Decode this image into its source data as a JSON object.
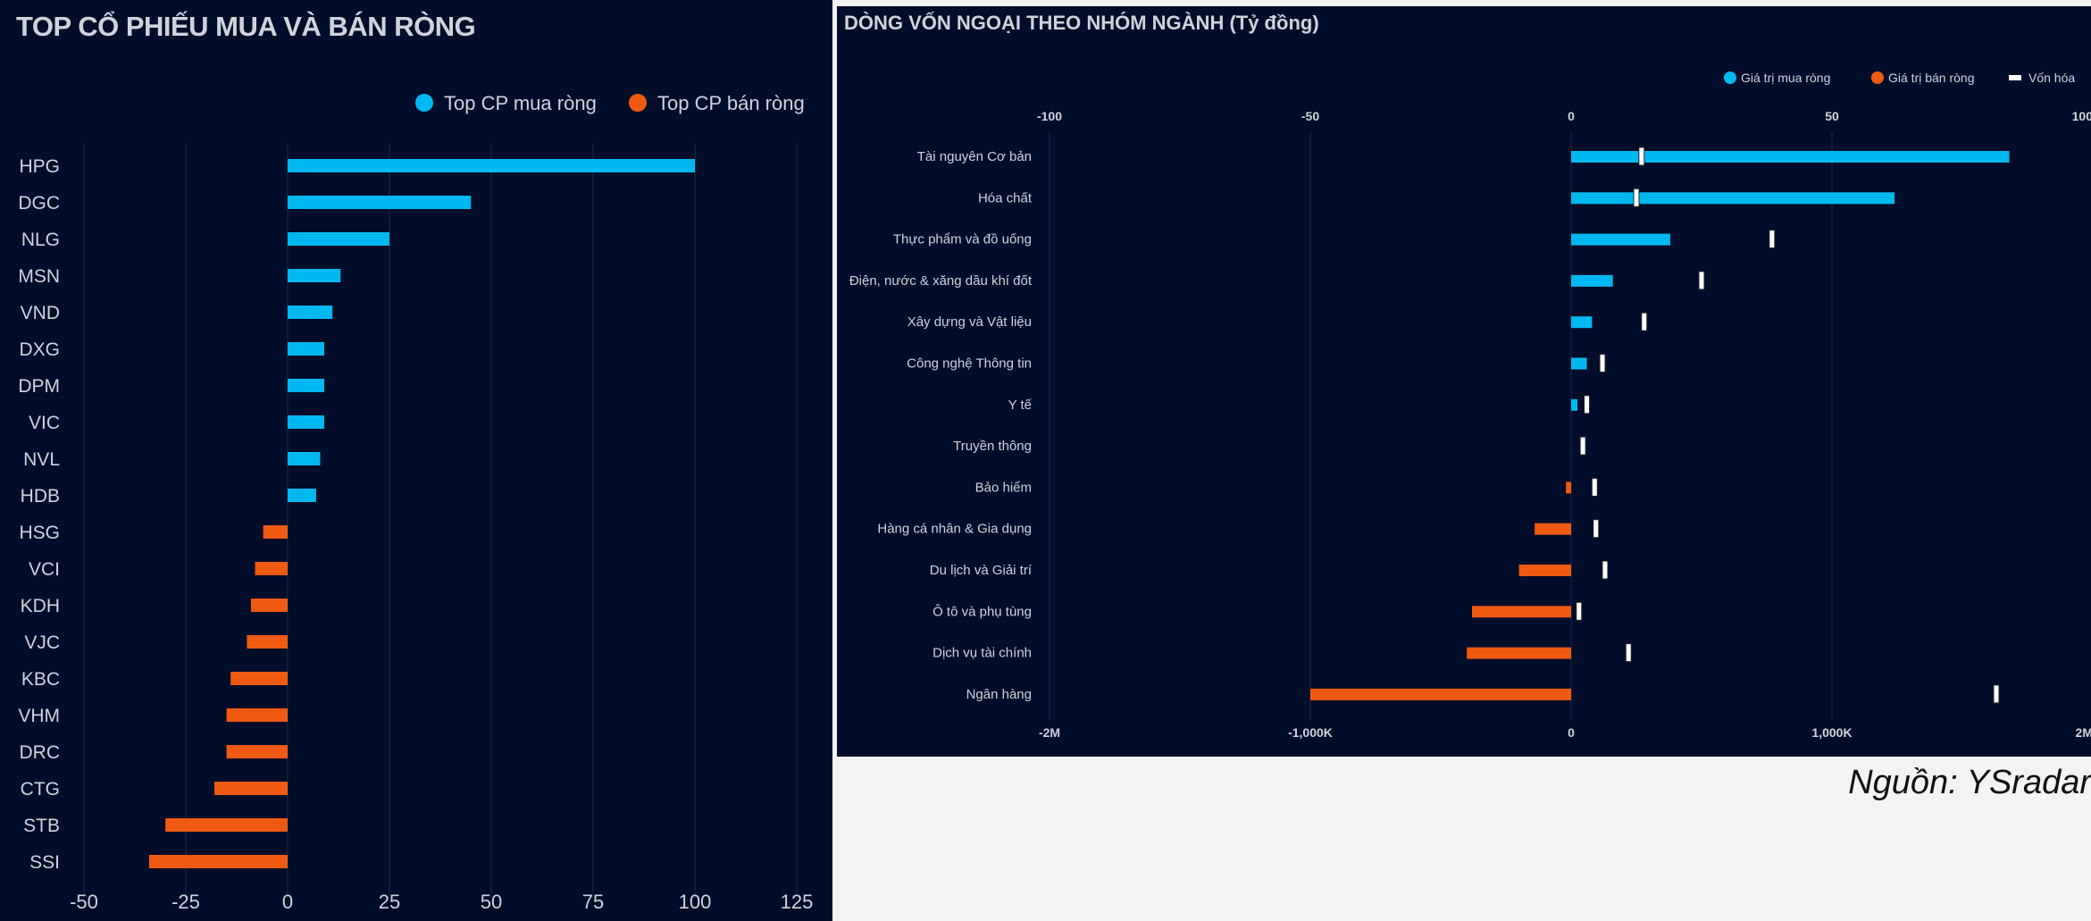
{
  "left_title": "TOP CỔ PHIẾU MUA VÀ BÁN RÒNG",
  "right_title": "DÒNG VỐN NGOẠI THEO NHÓM NGÀNH (Tỷ đồng)",
  "source": "Nguồn: YSradar",
  "colors": {
    "buy": "#00b8f0",
    "sell": "#ef5a13",
    "cap": "#ffffff",
    "grid": "#1b2a4a",
    "text": "#cfd3db",
    "bg": "#020d29"
  },
  "chart_data": [
    {
      "type": "bar",
      "orientation": "horizontal",
      "title": "TOP CỔ PHIẾU MUA VÀ BÁN RÒNG",
      "legend_position": "top-right",
      "grid": true,
      "xlim": [
        -50,
        125
      ],
      "x_ticks": [
        "-50",
        "-25",
        "0",
        "25",
        "50",
        "75",
        "100",
        "125"
      ],
      "categories": [
        "HPG",
        "DGC",
        "NLG",
        "MSN",
        "VND",
        "DXG",
        "DPM",
        "VIC",
        "NVL",
        "HDB",
        "HSG",
        "VCI",
        "KDH",
        "VJC",
        "KBC",
        "VHM",
        "DRC",
        "CTG",
        "STB",
        "SSI"
      ],
      "series": [
        {
          "name": "Top CP mua ròng",
          "color": "#00b8f0",
          "values": [
            100,
            45,
            25,
            13,
            11,
            9,
            9,
            9,
            8,
            7,
            null,
            null,
            null,
            null,
            null,
            null,
            null,
            null,
            null,
            null
          ]
        },
        {
          "name": "Top CP bán ròng",
          "color": "#ef5a13",
          "values": [
            null,
            null,
            null,
            null,
            null,
            null,
            null,
            null,
            null,
            null,
            -6,
            -8,
            -9,
            -10,
            -14,
            -15,
            -15,
            -18,
            -30,
            -34
          ]
        }
      ]
    },
    {
      "type": "bar",
      "orientation": "horizontal",
      "title": "DÒNG VỐN NGOẠI THEO NHÓM NGÀNH (Tỷ đồng)",
      "legend_position": "top-right",
      "grid": true,
      "xlim_top": [
        -100,
        100
      ],
      "x_ticks_top": [
        "-100",
        "-50",
        "0",
        "50",
        "100"
      ],
      "xlim_bottom": [
        -2000000,
        2000000
      ],
      "x_ticks_bottom": [
        "-2M",
        "-1,000K",
        "0",
        "1,000K",
        "2M"
      ],
      "categories": [
        "Tài nguyên Cơ bản",
        "Hóa chất",
        "Thực phẩm và đồ uống",
        "Điện, nước & xăng dầu khí đốt",
        "Xây dựng và Vật liệu",
        "Công nghệ Thông tin",
        "Y tế",
        "Truyền thông",
        "Bảo hiểm",
        "Hàng cá nhân & Gia dụng",
        "Du lịch và Giải trí",
        "Ô tô và phụ tùng",
        "Dịch vụ tài chính",
        "Ngân hàng"
      ],
      "series": [
        {
          "name": "Giá trị mua ròng",
          "color": "#00b8f0",
          "axis": "top",
          "values": [
            84,
            62,
            19,
            8,
            4,
            3,
            1.2,
            null,
            null,
            null,
            null,
            null,
            null,
            null
          ]
        },
        {
          "name": "Giá trị bán ròng",
          "color": "#ef5a13",
          "axis": "top",
          "values": [
            null,
            null,
            null,
            null,
            null,
            null,
            null,
            null,
            -1,
            -7,
            -10,
            -19,
            -20,
            -50
          ]
        },
        {
          "name": "Vốn hóa",
          "color": "#ffffff",
          "axis": "bottom",
          "marker": "tick",
          "values": [
            270000,
            250000,
            770000,
            500000,
            280000,
            120000,
            60000,
            45000,
            90000,
            95000,
            130000,
            30000,
            220000,
            1630000
          ]
        }
      ]
    }
  ]
}
